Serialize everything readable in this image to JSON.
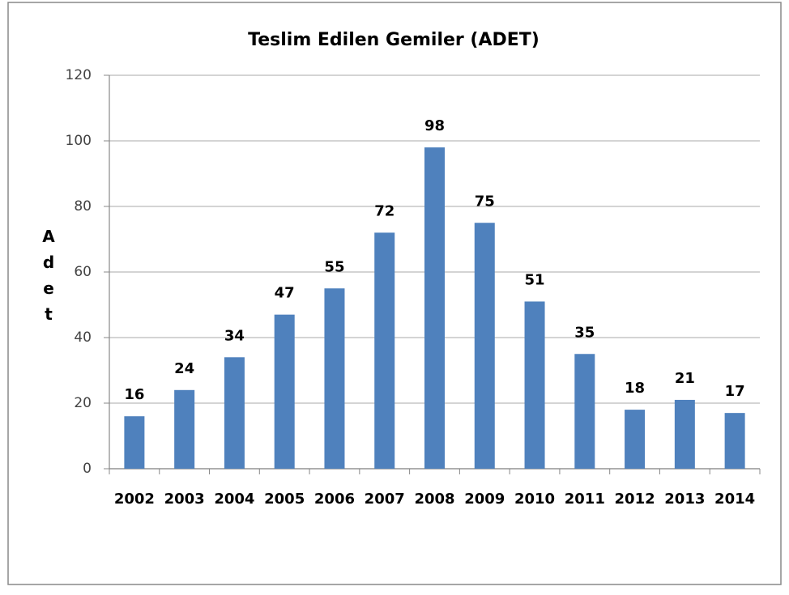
{
  "chart_data": {
    "type": "bar",
    "title": "Teslim Edilen Gemiler (ADET)",
    "y_label": "Adet",
    "categories": [
      "2002",
      "2003",
      "2004",
      "2005",
      "2006",
      "2007",
      "2008",
      "2009",
      "2010",
      "2011",
      "2012",
      "2013",
      "2014"
    ],
    "values": [
      16,
      24,
      34,
      47,
      55,
      72,
      98,
      75,
      51,
      35,
      18,
      21,
      17
    ],
    "color": "#4f81bd",
    "ylim": [
      0,
      120
    ],
    "yticks": [
      0,
      20,
      40,
      60,
      80,
      100,
      120
    ],
    "grid": true
  }
}
